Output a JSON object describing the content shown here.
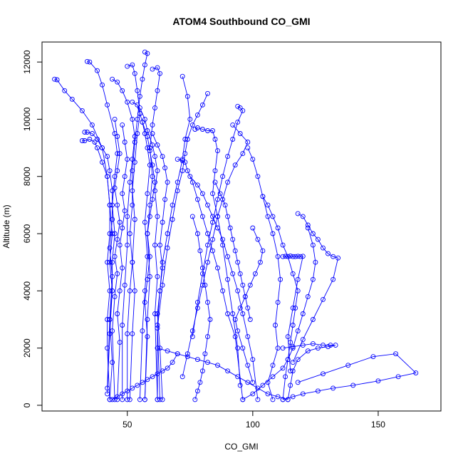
{
  "chart_data": {
    "type": "scatter",
    "title": "ATOM4 Southbound CO_GMI",
    "xlabel": "CO_GMI",
    "ylabel": "Altitude (m)",
    "xlim": [
      16,
      175
    ],
    "ylim": [
      -200,
      12700
    ],
    "x_ticks": [
      50,
      100,
      150
    ],
    "y_ticks": [
      0,
      2000,
      4000,
      6000,
      8000,
      10000,
      12000
    ],
    "x_tick_labels": [
      "50",
      "100",
      "150"
    ],
    "y_tick_labels": [
      "0",
      "2000",
      "4000",
      "6000",
      "8000",
      "10000",
      "12000"
    ],
    "grid": false,
    "legend": "none",
    "marker": "open-circle",
    "connected": true,
    "color": "#0000ff",
    "series": [
      {
        "x": [
          21,
          22,
          25,
          28,
          32,
          36,
          40,
          42,
          43,
          43,
          42,
          43,
          42,
          42,
          43
        ],
        "y": [
          11400,
          11380,
          11000,
          10700,
          10300,
          9800,
          9000,
          8000,
          7000,
          6000,
          5000,
          4000,
          3000,
          2000,
          200
        ]
      },
      {
        "x": [
          34,
          35,
          38,
          40,
          42,
          45,
          46,
          45,
          44,
          45,
          44,
          44,
          43,
          44,
          43
        ],
        "y": [
          12020,
          12000,
          11700,
          11200,
          10500,
          9500,
          8800,
          8000,
          7000,
          6000,
          5000,
          4000,
          3000,
          1500,
          200
        ]
      },
      {
        "x": [
          33,
          34,
          36,
          38,
          40,
          42,
          43,
          44,
          44,
          43,
          44,
          43,
          42
        ],
        "y": [
          9550,
          9550,
          9500,
          9300,
          9000,
          8700,
          8200,
          7500,
          6500,
          5500,
          4500,
          3000,
          600
        ]
      },
      {
        "x": [
          32,
          33,
          35,
          37,
          38,
          40,
          42,
          43,
          44,
          43,
          44,
          43,
          42
        ],
        "y": [
          9250,
          9250,
          9300,
          9200,
          9000,
          8500,
          8000,
          7000,
          6000,
          5000,
          4000,
          2500,
          400
        ]
      },
      {
        "x": [
          57,
          58,
          57,
          56,
          55,
          54,
          53,
          52,
          52,
          51,
          52,
          51,
          50,
          50
        ],
        "y": [
          12350,
          12300,
          11900,
          11400,
          10800,
          10000,
          9200,
          8200,
          7000,
          6000,
          5000,
          4000,
          2500,
          200
        ]
      },
      {
        "x": [
          50,
          52,
          53,
          54,
          55,
          54,
          53,
          52,
          53,
          52,
          53,
          52,
          51
        ],
        "y": [
          11850,
          11900,
          11600,
          11000,
          10200,
          9500,
          8500,
          7500,
          6500,
          5000,
          4000,
          2500,
          200
        ]
      },
      {
        "x": [
          60,
          62,
          63,
          62,
          61,
          60,
          59,
          60,
          59,
          58,
          59,
          58,
          57
        ],
        "y": [
          11750,
          11800,
          11600,
          11000,
          10400,
          9800,
          9000,
          8000,
          7000,
          6000,
          4500,
          3000,
          200
        ]
      },
      {
        "x": [
          44,
          46,
          48,
          50,
          52,
          53,
          52,
          51,
          50,
          50,
          49,
          48,
          48
        ],
        "y": [
          11400,
          11300,
          11000,
          10600,
          10000,
          9400,
          8600,
          7800,
          6600,
          5600,
          4200,
          2800,
          200
        ]
      },
      {
        "x": [
          52,
          54,
          55,
          56,
          57,
          58,
          59,
          58,
          57,
          58,
          57,
          56,
          55
        ],
        "y": [
          10600,
          10500,
          10200,
          9900,
          9500,
          9000,
          8400,
          7400,
          6400,
          5200,
          4000,
          2600,
          200
        ]
      },
      {
        "x": [
          55,
          57,
          58,
          60,
          61,
          62,
          61,
          62,
          61,
          62,
          61,
          62
        ],
        "y": [
          10400,
          10000,
          9600,
          9100,
          8700,
          8200,
          7500,
          6600,
          5600,
          4500,
          3200,
          200
        ]
      },
      {
        "x": [
          72,
          74,
          75,
          73,
          72,
          70,
          68,
          66,
          64,
          63,
          62,
          63
        ],
        "y": [
          11500,
          10800,
          10000,
          9300,
          8600,
          7800,
          7000,
          6000,
          5000,
          4000,
          2800,
          200
        ]
      },
      {
        "x": [
          82,
          80,
          78,
          76,
          74,
          73,
          72,
          70,
          68,
          66,
          64,
          62,
          62
        ],
        "y": [
          10900,
          10500,
          10150,
          9800,
          9300,
          8800,
          8200,
          7500,
          6500,
          5500,
          4200,
          2700,
          200
        ]
      },
      {
        "x": [
          94,
          95,
          96,
          94,
          92,
          90,
          88,
          86,
          84,
          82,
          80,
          78,
          76
        ],
        "y": [
          10450,
          10400,
          10300,
          9900,
          9300,
          8700,
          8000,
          7200,
          6400,
          5600,
          4600,
          3600,
          2400
        ]
      },
      {
        "x": [
          77,
          78,
          80,
          82,
          84,
          85,
          86,
          85,
          84,
          86,
          88,
          90,
          92,
          94,
          95
        ],
        "y": [
          9650,
          9700,
          9650,
          9600,
          9600,
          9300,
          8900,
          8200,
          7400,
          6600,
          5600,
          4400,
          3200,
          2000,
          700
        ]
      },
      {
        "x": [
          92,
          95,
          98,
          96,
          93,
          90,
          88,
          86,
          84,
          82,
          80,
          78,
          76,
          74,
          72
        ],
        "y": [
          9800,
          9500,
          9200,
          8800,
          8400,
          7800,
          7200,
          6600,
          5800,
          5000,
          4200,
          3400,
          2600,
          1800,
          1000
        ]
      },
      {
        "x": [
          70,
          72,
          73,
          74,
          76,
          78,
          80,
          82,
          84,
          86,
          88,
          90,
          93,
          96
        ],
        "y": [
          8600,
          8550,
          8500,
          8200,
          7800,
          7200,
          6600,
          6000,
          5400,
          4800,
          4000,
          3200,
          2400,
          200
        ]
      },
      {
        "x": [
          75,
          78,
          80,
          82,
          84,
          86,
          88,
          90,
          92,
          94,
          96,
          98,
          100,
          102
        ],
        "y": [
          8000,
          7700,
          7400,
          7000,
          6600,
          6200,
          5800,
          5200,
          4600,
          4000,
          3200,
          2400,
          1600,
          200
        ]
      },
      {
        "x": [
          98,
          100,
          102,
          104,
          106,
          108,
          110,
          111,
          110,
          109,
          110,
          108,
          106,
          108
        ],
        "y": [
          9000,
          8600,
          8000,
          7300,
          6600,
          6000,
          5200,
          4400,
          3600,
          2800,
          2000,
          1400,
          800,
          200
        ]
      },
      {
        "x": [
          104,
          106,
          108,
          110,
          112,
          114,
          116,
          118,
          117,
          116,
          115,
          114,
          113,
          112
        ],
        "y": [
          7300,
          7000,
          6600,
          6200,
          5600,
          5200,
          4600,
          4000,
          3400,
          2800,
          2200,
          1600,
          1000,
          200
        ]
      },
      {
        "x": [
          118,
          120,
          122,
          124,
          126,
          128,
          130,
          132,
          134,
          132,
          128,
          124,
          120,
          116
        ],
        "y": [
          6700,
          6600,
          6300,
          6000,
          5800,
          5500,
          5300,
          5200,
          5150,
          4400,
          3700,
          3000,
          2300,
          1500
        ]
      },
      {
        "x": [
          112,
          113,
          114,
          115,
          116,
          117,
          118,
          119,
          120,
          118,
          116,
          114,
          115
        ],
        "y": [
          5200,
          5210,
          5200,
          5220,
          5200,
          5200,
          5210,
          5200,
          5210,
          4400,
          3400,
          2400,
          1200
        ]
      },
      {
        "x": [
          112,
          116,
          120,
          124,
          128,
          131,
          133,
          130,
          126,
          122,
          118,
          116,
          115,
          114
        ],
        "y": [
          2000,
          2050,
          2100,
          2150,
          2100,
          2100,
          2100,
          2050,
          2000,
          1900,
          1600,
          1200,
          700,
          200
        ]
      },
      {
        "x": [
          112,
          116,
          120,
          126,
          132,
          140,
          150,
          158,
          165,
          157,
          148,
          138,
          128,
          118
        ],
        "y": [
          200,
          300,
          400,
          500,
          600,
          700,
          850,
          1000,
          1130,
          1800,
          1700,
          1400,
          1100,
          800
        ]
      },
      {
        "x": [
          96,
          100,
          104,
          108,
          112,
          114,
          116,
          118,
          120,
          122,
          124,
          125,
          124,
          122
        ],
        "y": [
          200,
          400,
          700,
          1000,
          1300,
          1600,
          2000,
          2600,
          3200,
          3800,
          4400,
          5000,
          5600,
          6200
        ]
      },
      {
        "x": [
          62,
          66,
          70,
          74,
          78,
          82,
          86,
          90,
          94,
          98,
          102,
          106,
          110,
          114
        ],
        "y": [
          2000,
          1900,
          1800,
          1700,
          1600,
          1500,
          1400,
          1200,
          1000,
          800,
          600,
          400,
          300,
          200
        ]
      },
      {
        "x": [
          44,
          46,
          48,
          50,
          52,
          54,
          56,
          58,
          60,
          62,
          64,
          66,
          68,
          70
        ],
        "y": [
          200,
          300,
          400,
          500,
          600,
          700,
          800,
          900,
          1000,
          1100,
          1200,
          1300,
          1500,
          1800
        ]
      },
      {
        "x": [
          45,
          46,
          47,
          46,
          45,
          46,
          47,
          46,
          45,
          46,
          45,
          44,
          45
        ],
        "y": [
          10000,
          9400,
          8800,
          8200,
          7600,
          7000,
          6400,
          5800,
          5200,
          4600,
          3800,
          2600,
          200
        ]
      },
      {
        "x": [
          48,
          49,
          50,
          49,
          48,
          49,
          48,
          47,
          48,
          47,
          46,
          47,
          46
        ],
        "y": [
          9800,
          9200,
          8600,
          8000,
          7400,
          6800,
          6200,
          5600,
          4800,
          4000,
          3200,
          2200,
          200
        ]
      },
      {
        "x": [
          56,
          58,
          59,
          60,
          61,
          60,
          59,
          58,
          59,
          58,
          57,
          58,
          57
        ],
        "y": [
          9900,
          9400,
          8900,
          8400,
          7800,
          7200,
          6600,
          6000,
          5200,
          4400,
          3600,
          2400,
          200
        ]
      },
      {
        "x": [
          60,
          62,
          64,
          65,
          66,
          65,
          64,
          63,
          64,
          63,
          62,
          63,
          64
        ],
        "y": [
          9500,
          9100,
          8700,
          8300,
          7800,
          7200,
          6400,
          5600,
          4800,
          4000,
          3200,
          2000,
          200
        ]
      },
      {
        "x": [
          100,
          102,
          104,
          103,
          101,
          99,
          97,
          95,
          93,
          94,
          96,
          98,
          100
        ],
        "y": [
          6200,
          5800,
          5400,
          5000,
          4600,
          4200,
          3800,
          3400,
          3000,
          2600,
          2000,
          1400,
          800
        ]
      },
      {
        "x": [
          85,
          87,
          89,
          90,
          91,
          92,
          93,
          94,
          95,
          96,
          97,
          98,
          99
        ],
        "y": [
          7800,
          7400,
          7000,
          6600,
          6200,
          5800,
          5400,
          5000,
          4600,
          4200,
          3800,
          3400,
          3000
        ]
      },
      {
        "x": [
          76,
          78,
          79,
          80,
          81,
          82,
          83,
          82,
          81,
          80,
          79,
          78,
          77
        ],
        "y": [
          6600,
          6000,
          5400,
          4800,
          4200,
          3600,
          3000,
          2400,
          1800,
          1200,
          800,
          500,
          200
        ]
      }
    ]
  }
}
